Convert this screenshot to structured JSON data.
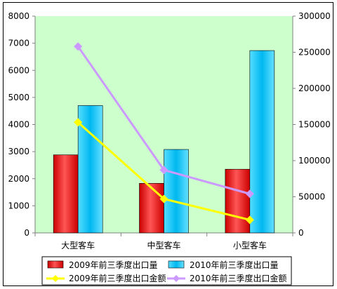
{
  "chart_data": {
    "type": "bar",
    "categories": [
      "大型客车",
      "中型客车",
      "小型客车"
    ],
    "left_axis": {
      "ylim": [
        0,
        8000
      ],
      "ticks": [
        "0",
        "1000",
        "2000",
        "3000",
        "4000",
        "5000",
        "6000",
        "7000",
        "8000"
      ]
    },
    "right_axis": {
      "ylim": [
        0,
        300000
      ],
      "ticks": [
        "0",
        "50000",
        "100000",
        "150000",
        "200000",
        "250000",
        "300000"
      ]
    },
    "series": [
      {
        "name": "2009年前三季度出口量",
        "kind": "bar",
        "axis": "left",
        "color": "#ff0000",
        "values": [
          2880,
          1830,
          2350
        ]
      },
      {
        "name": "2010年前三季度出口量",
        "kind": "bar",
        "axis": "left",
        "color": "#33ccff",
        "values": [
          4700,
          3080,
          6730
        ]
      },
      {
        "name": "2009年前三季度出口金额",
        "kind": "line",
        "axis": "right",
        "color": "#ffff00",
        "values": [
          153000,
          47000,
          18000
        ]
      },
      {
        "name": "2010年前三季度出口金额",
        "kind": "line",
        "axis": "right",
        "color": "#cc99ff",
        "values": [
          258000,
          87000,
          54000
        ]
      }
    ],
    "plot_background": "#ccffcc",
    "grid": false,
    "legend": "bottom"
  }
}
